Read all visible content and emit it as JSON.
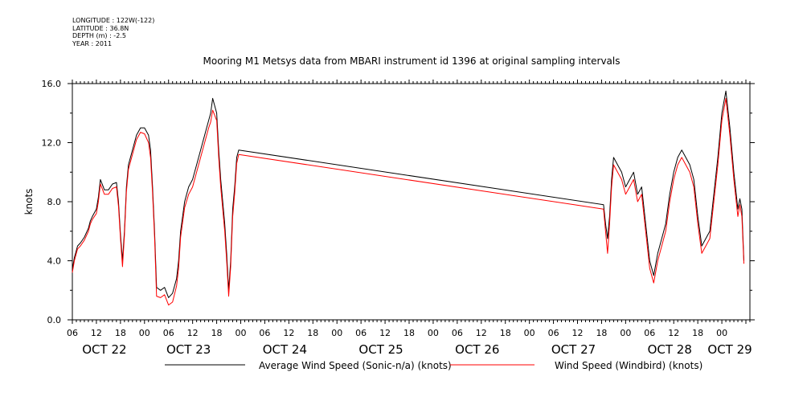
{
  "meta": {
    "longitude": "LONGITUDE : 122W(-122)",
    "latitude": "LATITUDE : 36.8N",
    "depth": "DEPTH (m) : -2.5",
    "year": "YEAR : 2011"
  },
  "chart_data": {
    "type": "line",
    "title": "Mooring M1 Metsys data from MBARI instrument id 1396 at original sampling intervals",
    "ylabel": "knots",
    "xlabel": "",
    "ylim": [
      0,
      16
    ],
    "y_ticks": [
      "0.0",
      "4.0",
      "8.0",
      "12.0",
      "16.0"
    ],
    "x_unit": "hours since OCT 22 00",
    "xlim": [
      6,
      175
    ],
    "x_ticks": [
      {
        "x": 6,
        "label": "06"
      },
      {
        "x": 12,
        "label": "12"
      },
      {
        "x": 18,
        "label": "18"
      },
      {
        "x": 24,
        "label": "00"
      },
      {
        "x": 30,
        "label": "06"
      },
      {
        "x": 36,
        "label": "12"
      },
      {
        "x": 42,
        "label": "18"
      },
      {
        "x": 48,
        "label": "00"
      },
      {
        "x": 54,
        "label": "06"
      },
      {
        "x": 60,
        "label": "12"
      },
      {
        "x": 66,
        "label": "18"
      },
      {
        "x": 72,
        "label": "00"
      },
      {
        "x": 78,
        "label": "06"
      },
      {
        "x": 84,
        "label": "12"
      },
      {
        "x": 90,
        "label": "18"
      },
      {
        "x": 96,
        "label": "00"
      },
      {
        "x": 102,
        "label": "06"
      },
      {
        "x": 108,
        "label": "12"
      },
      {
        "x": 114,
        "label": "18"
      },
      {
        "x": 120,
        "label": "00"
      },
      {
        "x": 126,
        "label": "06"
      },
      {
        "x": 132,
        "label": "12"
      },
      {
        "x": 138,
        "label": "18"
      },
      {
        "x": 144,
        "label": "00"
      },
      {
        "x": 150,
        "label": "06"
      },
      {
        "x": 156,
        "label": "12"
      },
      {
        "x": 162,
        "label": "18"
      },
      {
        "x": 168,
        "label": "00"
      }
    ],
    "day_labels": [
      {
        "x": 14,
        "label": "OCT 22"
      },
      {
        "x": 35,
        "label": "OCT 23"
      },
      {
        "x": 59,
        "label": "OCT 24"
      },
      {
        "x": 83,
        "label": "OCT 25"
      },
      {
        "x": 107,
        "label": "OCT 26"
      },
      {
        "x": 131,
        "label": "OCT 27"
      },
      {
        "x": 155,
        "label": "OCT 28"
      },
      {
        "x": 170,
        "label": "OCT 29"
      }
    ],
    "series": [
      {
        "name": "Average Wind Speed (Sonic-n/a) (knots)",
        "color": "#000000",
        "points": [
          [
            6,
            3.4
          ],
          [
            6.5,
            4.2
          ],
          [
            7.3,
            5.0
          ],
          [
            8,
            5.2
          ],
          [
            9,
            5.6
          ],
          [
            10,
            6.2
          ],
          [
            10.5,
            6.7
          ],
          [
            11,
            7.0
          ],
          [
            12,
            7.5
          ],
          [
            12.5,
            8.3
          ],
          [
            13,
            9.5
          ],
          [
            14,
            8.8
          ],
          [
            15,
            8.8
          ],
          [
            16,
            9.2
          ],
          [
            17,
            9.3
          ],
          [
            17.5,
            8.0
          ],
          [
            18,
            5.8
          ],
          [
            18.5,
            4.0
          ],
          [
            19,
            6.0
          ],
          [
            19.5,
            9.0
          ],
          [
            20,
            10.5
          ],
          [
            21,
            11.5
          ],
          [
            22,
            12.5
          ],
          [
            23,
            13.0
          ],
          [
            24,
            13.0
          ],
          [
            25,
            12.5
          ],
          [
            25.5,
            11.5
          ],
          [
            26,
            9.0
          ],
          [
            26.5,
            6.0
          ],
          [
            27,
            2.2
          ],
          [
            28,
            2.0
          ],
          [
            29,
            2.2
          ],
          [
            30,
            1.5
          ],
          [
            31,
            1.8
          ],
          [
            32,
            2.8
          ],
          [
            32.5,
            4.0
          ],
          [
            33,
            6.0
          ],
          [
            34,
            8.0
          ],
          [
            35,
            9.0
          ],
          [
            36,
            9.5
          ],
          [
            37,
            10.5
          ],
          [
            38,
            11.5
          ],
          [
            39,
            12.5
          ],
          [
            40,
            13.5
          ],
          [
            40.5,
            14.0
          ],
          [
            41,
            15.0
          ],
          [
            42,
            14.0
          ],
          [
            42.5,
            11.5
          ],
          [
            43,
            9.5
          ],
          [
            44,
            6.5
          ],
          [
            44.5,
            4.5
          ],
          [
            45,
            2.0
          ],
          [
            45.5,
            4.0
          ],
          [
            46,
            7.5
          ],
          [
            46.5,
            9.0
          ],
          [
            47,
            11.0
          ],
          [
            47.5,
            11.5
          ],
          [
            138.5,
            7.8
          ],
          [
            139,
            6.5
          ],
          [
            139.5,
            5.5
          ],
          [
            140,
            7.0
          ],
          [
            140.5,
            9.5
          ],
          [
            141,
            11.0
          ],
          [
            142,
            10.5
          ],
          [
            143,
            10.0
          ],
          [
            144,
            9.0
          ],
          [
            145,
            9.5
          ],
          [
            146,
            10.0
          ],
          [
            147,
            8.5
          ],
          [
            148,
            9.0
          ],
          [
            149,
            6.5
          ],
          [
            150,
            4.0
          ],
          [
            151,
            3.0
          ],
          [
            152,
            4.5
          ],
          [
            153,
            5.5
          ],
          [
            154,
            6.5
          ],
          [
            155,
            8.5
          ],
          [
            156,
            10.0
          ],
          [
            157,
            11.0
          ],
          [
            158,
            11.5
          ],
          [
            159,
            11.0
          ],
          [
            160,
            10.5
          ],
          [
            161,
            9.5
          ],
          [
            162,
            7.0
          ],
          [
            163,
            5.0
          ],
          [
            164,
            5.5
          ],
          [
            165,
            6.0
          ],
          [
            166,
            8.5
          ],
          [
            167,
            11.0
          ],
          [
            168,
            14.0
          ],
          [
            169,
            15.5
          ],
          [
            170,
            13.0
          ],
          [
            171,
            10.0
          ],
          [
            172,
            7.5
          ],
          [
            172.5,
            8.2
          ],
          [
            173,
            7.5
          ],
          [
            173.5,
            4.0
          ]
        ]
      },
      {
        "name": "Wind Speed (Windbird) (knots)",
        "color": "#ff0000",
        "points": [
          [
            6,
            3.2
          ],
          [
            6.5,
            4.0
          ],
          [
            7.3,
            4.8
          ],
          [
            8,
            5.0
          ],
          [
            9,
            5.4
          ],
          [
            10,
            6.0
          ],
          [
            10.5,
            6.5
          ],
          [
            11,
            6.8
          ],
          [
            12,
            7.2
          ],
          [
            12.5,
            8.0
          ],
          [
            13,
            9.2
          ],
          [
            14,
            8.5
          ],
          [
            15,
            8.5
          ],
          [
            16,
            8.9
          ],
          [
            17,
            9.0
          ],
          [
            17.5,
            7.7
          ],
          [
            18,
            5.5
          ],
          [
            18.5,
            3.6
          ],
          [
            19,
            5.7
          ],
          [
            19.5,
            8.7
          ],
          [
            20,
            10.2
          ],
          [
            21,
            11.2
          ],
          [
            22,
            12.2
          ],
          [
            23,
            12.7
          ],
          [
            24,
            12.6
          ],
          [
            25,
            12.0
          ],
          [
            25.5,
            11.0
          ],
          [
            26,
            8.6
          ],
          [
            26.5,
            5.6
          ],
          [
            27,
            1.6
          ],
          [
            28,
            1.5
          ],
          [
            29,
            1.7
          ],
          [
            30,
            1.0
          ],
          [
            31,
            1.2
          ],
          [
            32,
            2.3
          ],
          [
            32.5,
            3.5
          ],
          [
            33,
            5.6
          ],
          [
            34,
            7.6
          ],
          [
            35,
            8.5
          ],
          [
            36,
            9.0
          ],
          [
            37,
            10.0
          ],
          [
            38,
            11.0
          ],
          [
            39,
            12.0
          ],
          [
            40,
            13.0
          ],
          [
            40.5,
            13.4
          ],
          [
            41,
            14.2
          ],
          [
            42,
            13.5
          ],
          [
            42.5,
            11.0
          ],
          [
            43,
            9.0
          ],
          [
            44,
            6.0
          ],
          [
            44.5,
            4.0
          ],
          [
            45,
            1.6
          ],
          [
            45.5,
            3.6
          ],
          [
            46,
            7.0
          ],
          [
            46.5,
            8.6
          ],
          [
            47,
            10.6
          ],
          [
            47.5,
            11.2
          ],
          [
            138.5,
            7.5
          ],
          [
            139,
            6.0
          ],
          [
            139.5,
            4.5
          ],
          [
            140,
            6.5
          ],
          [
            140.5,
            9.0
          ],
          [
            141,
            10.5
          ],
          [
            142,
            10.0
          ],
          [
            143,
            9.5
          ],
          [
            144,
            8.5
          ],
          [
            145,
            9.0
          ],
          [
            146,
            9.5
          ],
          [
            147,
            8.0
          ],
          [
            148,
            8.5
          ],
          [
            149,
            6.0
          ],
          [
            150,
            3.5
          ],
          [
            151,
            2.5
          ],
          [
            152,
            4.0
          ],
          [
            153,
            5.0
          ],
          [
            154,
            6.0
          ],
          [
            155,
            8.0
          ],
          [
            156,
            9.5
          ],
          [
            157,
            10.5
          ],
          [
            158,
            11.0
          ],
          [
            159,
            10.5
          ],
          [
            160,
            10.0
          ],
          [
            161,
            9.0
          ],
          [
            162,
            6.5
          ],
          [
            163,
            4.5
          ],
          [
            164,
            5.0
          ],
          [
            165,
            5.5
          ],
          [
            166,
            8.0
          ],
          [
            167,
            10.5
          ],
          [
            168,
            13.5
          ],
          [
            169,
            15.0
          ],
          [
            170,
            12.5
          ],
          [
            171,
            9.5
          ],
          [
            172,
            7.0
          ],
          [
            172.5,
            7.8
          ],
          [
            173,
            7.0
          ],
          [
            173.5,
            3.8
          ]
        ]
      }
    ],
    "grid": false
  }
}
